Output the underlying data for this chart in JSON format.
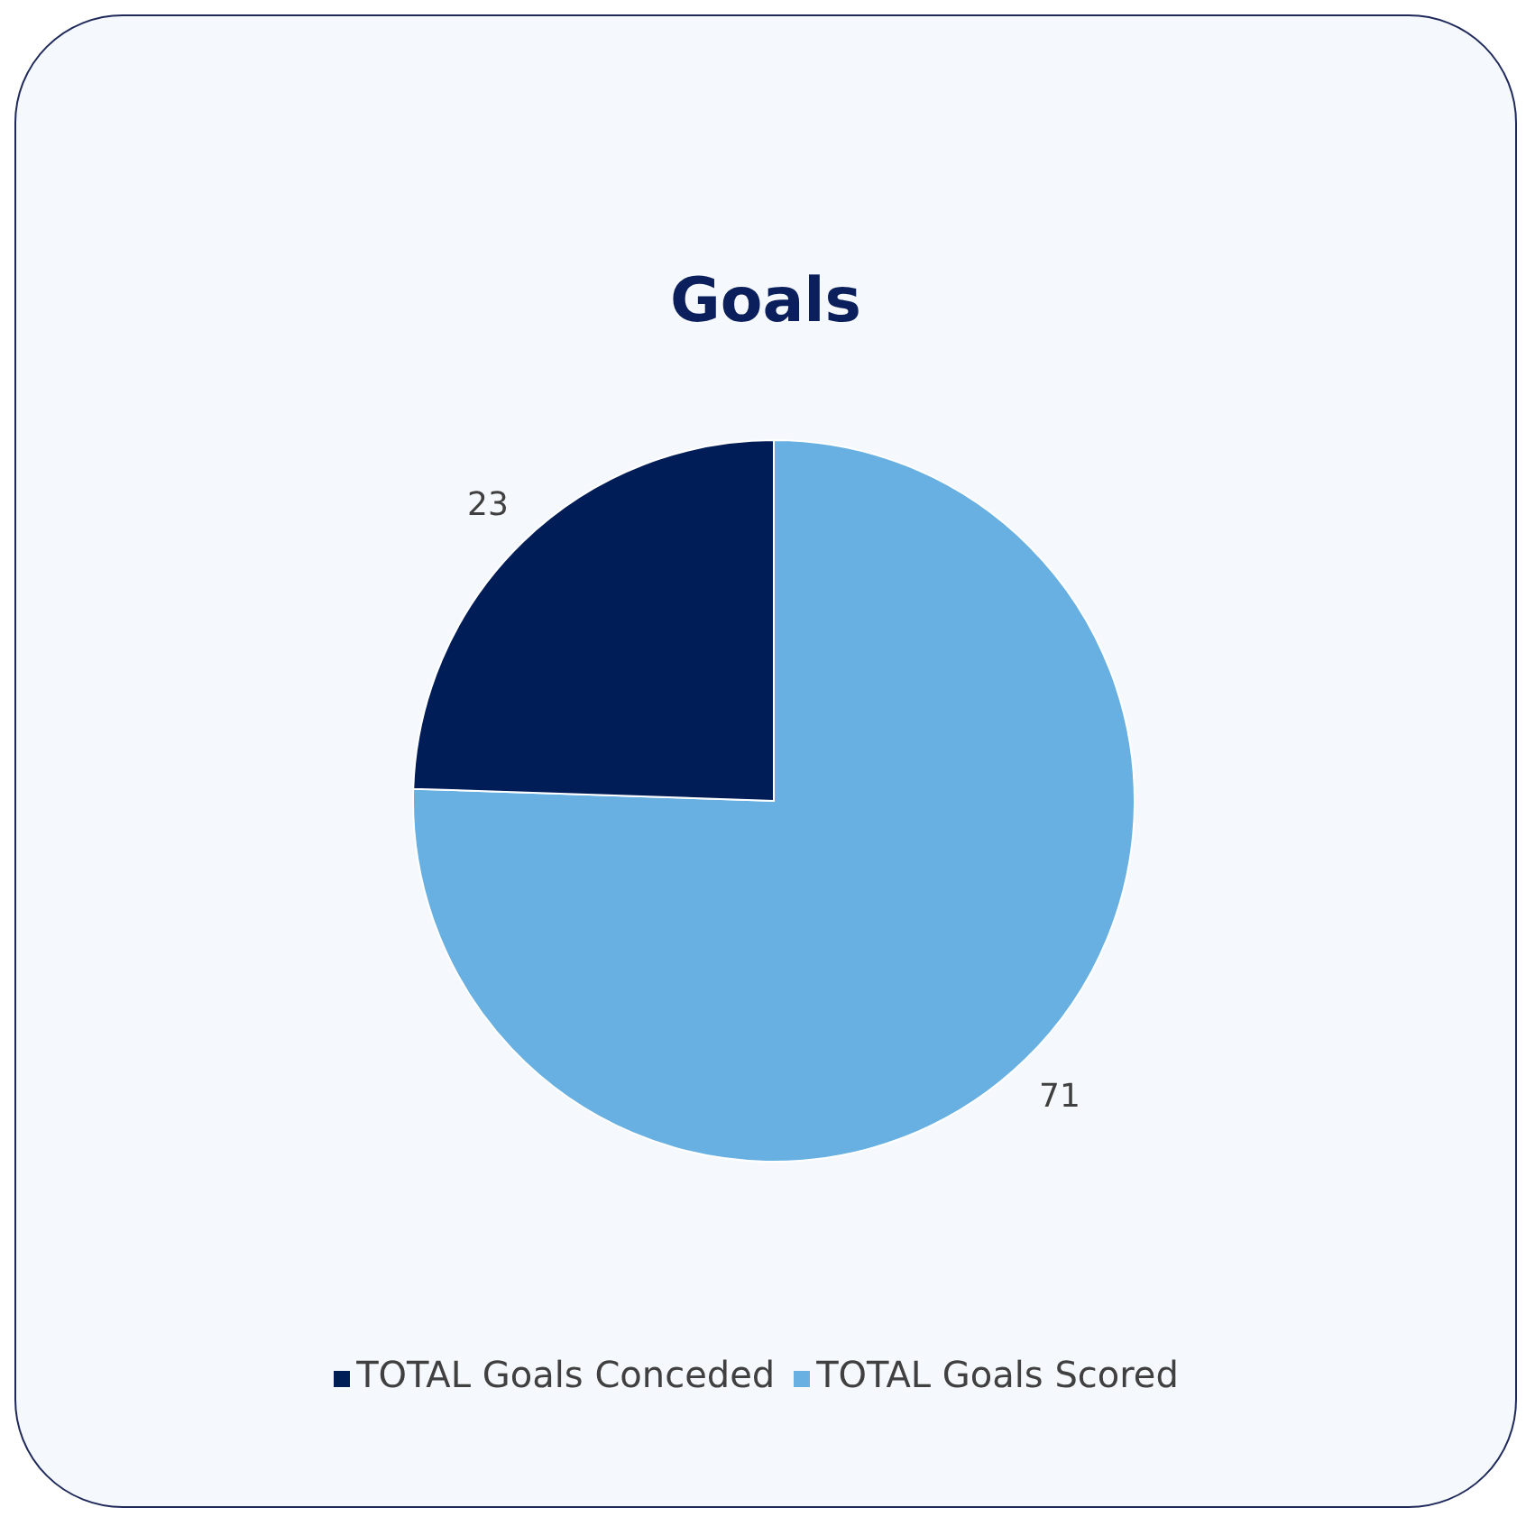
{
  "chart_data": {
    "type": "pie",
    "title": "Goals",
    "categories": [
      "TOTAL Goals Scored",
      "TOTAL Goals Conceded"
    ],
    "values": [
      71,
      23
    ],
    "colors": [
      "#67b0e1",
      "#001d57"
    ],
    "data_labels": true,
    "legend": "bottom"
  }
}
